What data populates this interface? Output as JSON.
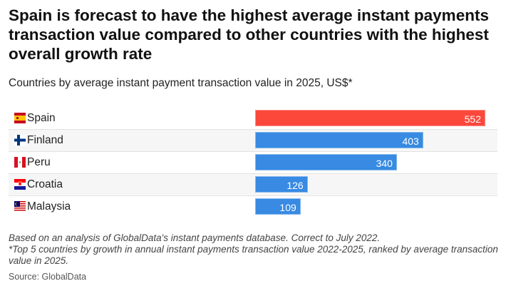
{
  "title": "Spain is forecast to have the highest average instant payments transaction value compared to other countries with the highest overall growth rate",
  "subtitle": "Countries by average instant payment transaction value in 2025, US$*",
  "chart_data": {
    "type": "bar",
    "orientation": "horizontal",
    "categories": [
      "Spain",
      "Finland",
      "Peru",
      "Croatia",
      "Malaysia"
    ],
    "values": [
      552,
      403,
      340,
      126,
      109
    ],
    "flags": [
      "spain-flag",
      "finland-flag",
      "peru-flag",
      "croatia-flag",
      "malaysia-flag"
    ],
    "colors": [
      "#fc473b",
      "#388ae2",
      "#388ae2",
      "#388ae2",
      "#388ae2"
    ],
    "xlim": [
      0,
      552
    ],
    "grid": false
  },
  "notes": [
    "Based on an analysis of GlobalData's instant payments database. Correct to July 2022.",
    "*Top 5 countries by growth in annual instant payments transaction value 2022-2025, ranked by average transaction value in 2025."
  ],
  "source": "Source: GlobalData"
}
